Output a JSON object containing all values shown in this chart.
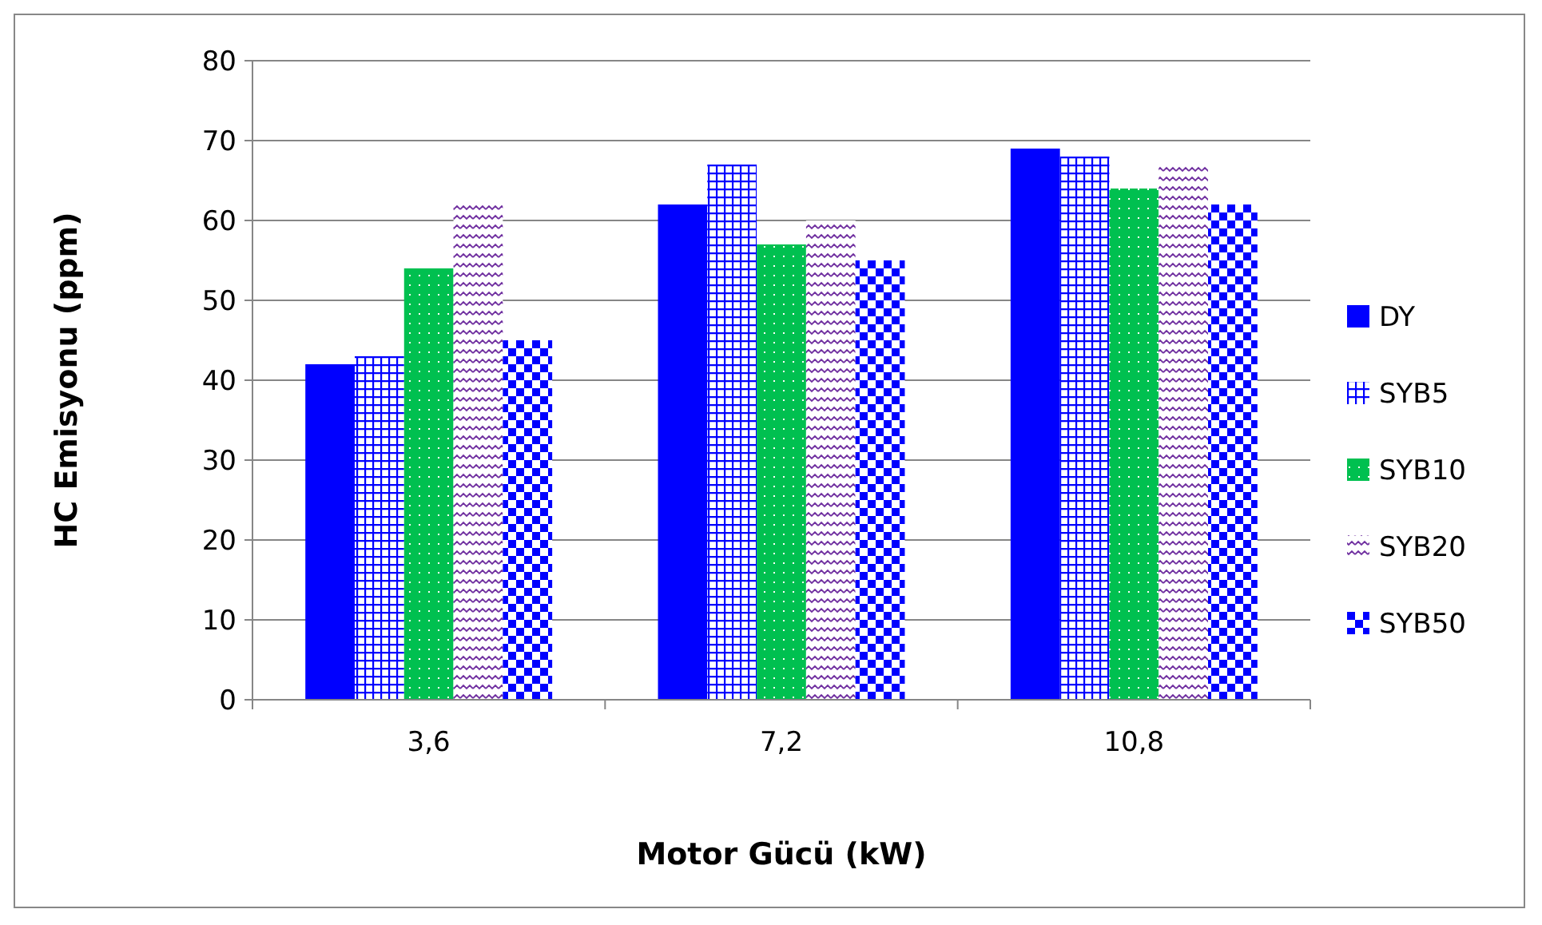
{
  "chart_data": {
    "type": "bar",
    "xlabel": "Motor Gücü (kW)",
    "ylabel": "HC Emisyonu (ppm)",
    "categories": [
      "3,6",
      "7,2",
      "10,8"
    ],
    "series": [
      {
        "name": "DY",
        "color": "#0000ff",
        "values": [
          42,
          62,
          69
        ]
      },
      {
        "name": "SYB5",
        "color": "#0000ff",
        "values": [
          43,
          67,
          68
        ]
      },
      {
        "name": "SYB10",
        "color": "#00c050",
        "values": [
          54,
          57,
          64
        ]
      },
      {
        "name": "SYB20",
        "color": "#7030a0",
        "values": [
          62,
          60,
          67
        ]
      },
      {
        "name": "SYB50",
        "color": "#0000ff",
        "values": [
          45,
          55,
          62
        ]
      }
    ],
    "ylim": [
      0,
      80
    ],
    "yticks": [
      0,
      10,
      20,
      30,
      40,
      50,
      60,
      70,
      80
    ],
    "grid": "y",
    "legend": "right"
  }
}
